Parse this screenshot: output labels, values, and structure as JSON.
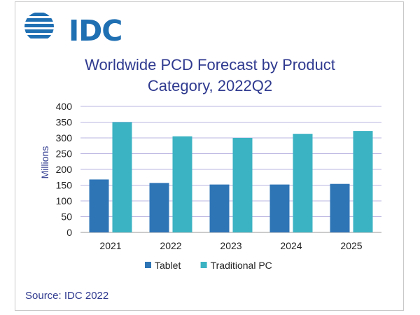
{
  "logo": {
    "text": "IDC",
    "color": "#1f6fb3"
  },
  "source": "Source: IDC 2022",
  "chart_data": {
    "type": "bar",
    "title_lines": [
      "Worldwide PCD Forecast by Product",
      "Category, 2022Q2"
    ],
    "xlabel": "",
    "ylabel": "Millions",
    "categories": [
      "2021",
      "2022",
      "2023",
      "2024",
      "2025"
    ],
    "ylim": [
      0,
      400
    ],
    "yticks": [
      0,
      50,
      100,
      150,
      200,
      250,
      300,
      350,
      400
    ],
    "grid": true,
    "legend_position": "bottom",
    "series": [
      {
        "name": "Tablet",
        "values": [
          168,
          157,
          152,
          152,
          154
        ],
        "color": "#2e75b6"
      },
      {
        "name": "Traditional PC",
        "values": [
          350,
          305,
          300,
          313,
          322
        ],
        "color": "#3bb3c3"
      }
    ]
  }
}
